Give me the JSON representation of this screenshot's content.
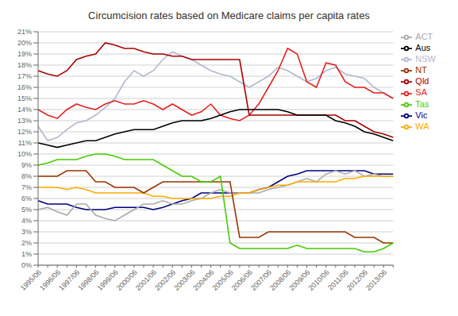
{
  "chart_data": {
    "type": "line",
    "title": "Circumcision rates based on Medicare claims per capita rates",
    "categories": [
      "1995/06",
      null,
      "1996/06",
      null,
      "1997/06",
      null,
      "1998/06",
      null,
      "1999/06",
      null,
      "2000/06",
      null,
      "2001/06",
      null,
      "2002/06",
      null,
      "2003/06",
      null,
      "2004/06",
      null,
      "2005/06",
      null,
      "2006/06",
      null,
      "2007/06",
      null,
      "2008/06",
      null,
      "2009/06",
      null,
      "2010/06",
      null,
      "2011/06",
      null,
      "2012/06",
      null,
      "2013/06",
      null
    ],
    "series": [
      {
        "name": "NSW",
        "color": "#b0b8d0",
        "values": [
          12.5,
          11.2,
          11.5,
          12.2,
          12.8,
          13.0,
          13.5,
          14.2,
          15.0,
          16.5,
          17.5,
          17.0,
          17.5,
          18.5,
          19.2,
          18.8,
          18.5,
          18.0,
          17.5,
          17.2,
          17.0,
          16.5,
          16.0,
          16.5,
          17.0,
          17.8,
          17.5,
          17.0,
          16.5,
          16.8,
          17.5,
          17.8,
          17.2,
          17.0,
          16.8,
          16.0,
          15.5,
          15.0
        ]
      },
      {
        "name": "SA",
        "color": "#e82020",
        "values": [
          14.0,
          13.5,
          13.2,
          14.0,
          14.5,
          14.2,
          14.0,
          14.5,
          14.8,
          14.5,
          14.5,
          14.8,
          14.5,
          14.0,
          14.5,
          14.0,
          13.5,
          13.8,
          14.5,
          13.5,
          13.2,
          13.0,
          13.5,
          14.5,
          16.0,
          17.5,
          19.5,
          19.0,
          16.5,
          16.0,
          18.2,
          18.0,
          16.5,
          16.0,
          16.0,
          15.5,
          15.5,
          15.0
        ]
      },
      {
        "name": "Qld",
        "color": "#aa0000",
        "values": [
          17.5,
          17.2,
          17.0,
          17.5,
          18.5,
          18.8,
          19.0,
          20.0,
          19.8,
          19.5,
          19.5,
          19.2,
          19.0,
          19.0,
          18.8,
          18.8,
          18.5,
          18.5,
          18.5,
          18.5,
          18.5,
          18.5,
          13.5,
          13.5,
          13.5,
          13.5,
          13.5,
          13.5,
          13.5,
          13.5,
          13.5,
          13.5,
          13.0,
          13.0,
          12.5,
          12.0,
          11.8,
          11.5
        ]
      },
      {
        "name": "Aus",
        "color": "#000000",
        "values": [
          11.0,
          10.8,
          10.6,
          10.8,
          11.0,
          11.2,
          11.2,
          11.5,
          11.8,
          12.0,
          12.2,
          12.2,
          12.2,
          12.5,
          12.8,
          13.0,
          13.0,
          13.0,
          13.2,
          13.5,
          13.8,
          14.0,
          14.0,
          14.0,
          14.0,
          14.0,
          13.8,
          13.5,
          13.5,
          13.5,
          13.5,
          13.0,
          12.8,
          12.5,
          12.0,
          11.8,
          11.5,
          11.2
        ]
      },
      {
        "name": "Vic",
        "color": "#000080",
        "values": [
          5.8,
          5.5,
          5.5,
          5.5,
          5.2,
          5.0,
          5.0,
          5.0,
          5.2,
          5.2,
          5.2,
          5.2,
          5.0,
          5.2,
          5.5,
          5.8,
          6.0,
          6.5,
          6.5,
          6.5,
          6.5,
          6.5,
          6.5,
          6.8,
          7.0,
          7.5,
          8.0,
          8.2,
          8.5,
          8.5,
          8.5,
          8.5,
          8.5,
          8.5,
          8.5,
          8.2,
          8.2,
          8.2
        ]
      },
      {
        "name": "ACT",
        "color": "#aaaaaa",
        "values": [
          5.0,
          5.2,
          4.8,
          4.5,
          5.5,
          5.5,
          4.5,
          4.2,
          4.0,
          4.5,
          5.0,
          5.5,
          5.5,
          5.8,
          5.5,
          5.5,
          5.8,
          6.0,
          6.5,
          6.8,
          6.5,
          6.5,
          6.5,
          6.5,
          6.8,
          7.0,
          7.2,
          7.5,
          7.8,
          7.5,
          8.2,
          8.5,
          8.2,
          8.5,
          8.0,
          8.2,
          8.0,
          8.0
        ]
      },
      {
        "name": "WA",
        "color": "#ffaa00",
        "values": [
          7.0,
          7.0,
          7.0,
          6.8,
          7.0,
          6.8,
          6.5,
          6.5,
          6.5,
          6.5,
          6.5,
          6.5,
          6.2,
          6.2,
          6.0,
          6.0,
          6.0,
          6.0,
          6.0,
          6.2,
          6.2,
          6.5,
          6.5,
          6.8,
          7.0,
          7.2,
          7.2,
          7.5,
          7.5,
          7.5,
          7.5,
          7.5,
          7.8,
          7.8,
          8.0,
          8.0,
          8.0,
          8.0
        ]
      },
      {
        "name": "NT",
        "color": "#993300",
        "values": [
          8.0,
          8.0,
          8.0,
          8.5,
          8.5,
          8.5,
          7.5,
          7.5,
          7.0,
          7.0,
          7.0,
          6.5,
          7.0,
          7.5,
          7.5,
          7.5,
          7.5,
          7.5,
          7.5,
          7.5,
          7.5,
          2.5,
          2.5,
          2.5,
          3.0,
          3.0,
          3.0,
          3.0,
          3.0,
          3.0,
          3.0,
          3.0,
          3.0,
          2.5,
          2.5,
          2.5,
          2.0,
          2.0
        ]
      },
      {
        "name": "Tas",
        "color": "#44cc00",
        "values": [
          9.0,
          9.2,
          9.5,
          9.5,
          9.5,
          9.8,
          10.0,
          10.0,
          9.8,
          9.5,
          9.5,
          9.5,
          9.5,
          9.0,
          8.5,
          8.0,
          8.0,
          7.5,
          7.5,
          8.0,
          2.0,
          1.5,
          1.5,
          1.5,
          1.5,
          1.5,
          1.5,
          1.8,
          1.5,
          1.5,
          1.5,
          1.5,
          1.5,
          1.5,
          1.2,
          1.2,
          1.5,
          2.0
        ]
      }
    ],
    "ylim": [
      0,
      21
    ],
    "yticks": [
      {
        "value": 0,
        "label": "0%"
      },
      {
        "value": 1,
        "label": "1%"
      },
      {
        "value": 2,
        "label": "2%"
      },
      {
        "value": 3,
        "label": "3%"
      },
      {
        "value": 4,
        "label": "4%"
      },
      {
        "value": 5,
        "label": "5%"
      },
      {
        "value": 6,
        "label": "6%"
      },
      {
        "value": 7,
        "label": "7%"
      },
      {
        "value": 8,
        "label": "8%"
      },
      {
        "value": 9,
        "label": "9%"
      },
      {
        "value": 10,
        "label": "10%"
      },
      {
        "value": 11,
        "label": "11%"
      },
      {
        "value": 12,
        "label": "12%"
      },
      {
        "value": 13,
        "label": "13%"
      },
      {
        "value": 14,
        "label": "14%"
      },
      {
        "value": 15,
        "label": "15%"
      },
      {
        "value": 16,
        "label": "16%"
      },
      {
        "value": 17,
        "label": "17%"
      },
      {
        "value": 18,
        "label": "18%"
      },
      {
        "value": 19,
        "label": "19%"
      },
      {
        "value": 20,
        "label": "20%"
      },
      {
        "value": 21,
        "label": "21%"
      }
    ],
    "grid": true,
    "legend": "right"
  }
}
